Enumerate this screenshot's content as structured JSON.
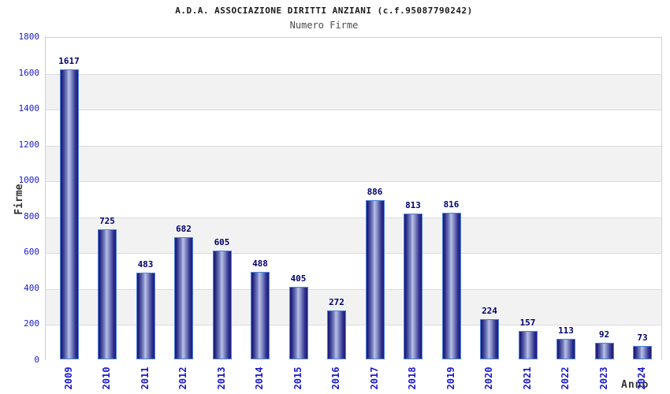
{
  "header": {
    "title": "A.D.A. ASSOCIAZIONE DIRITTI ANZIANI (c.f.95087790242)",
    "subtitle": "Numero Firme"
  },
  "chart_data": {
    "type": "bar",
    "title": "A.D.A. ASSOCIAZIONE DIRITTI ANZIANI (c.f.95087790242)",
    "subtitle": "Numero Firme",
    "xlabel": "Anno",
    "ylabel": "Firme",
    "categories": [
      "2009",
      "2010",
      "2011",
      "2012",
      "2013",
      "2014",
      "2015",
      "2016",
      "2017",
      "2018",
      "2019",
      "2020",
      "2021",
      "2022",
      "2023",
      "2024"
    ],
    "values": [
      1617,
      725,
      483,
      682,
      605,
      488,
      405,
      272,
      886,
      813,
      816,
      224,
      157,
      113,
      92,
      73
    ],
    "ylim": [
      0,
      1800
    ],
    "ytick_step": 200,
    "grid": true,
    "legend": false,
    "colors": {
      "tick_label": "#1a1ac9",
      "value_label": "#00006e",
      "bar_edge": "#4d82d9",
      "bar_dark": "#1c1c78",
      "bar_light": "#b8c0e6",
      "band_gray": "#f2f2f2",
      "gridline": "#dcdcdc",
      "plot_border": "#d0d0d0"
    }
  }
}
